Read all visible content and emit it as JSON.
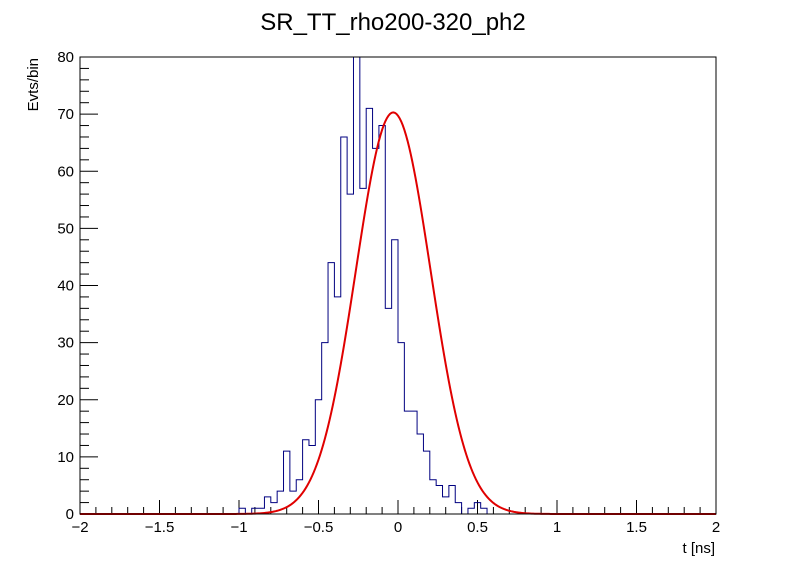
{
  "chart_data": {
    "type": "histogram",
    "title": "SR_TT_rho200-320_ph2",
    "xlabel": "t [ns]",
    "ylabel": "Evts/bin",
    "xlim": [
      -2,
      2
    ],
    "ylim": [
      0,
      80
    ],
    "grid": false,
    "legend": "none",
    "x_ticks": [
      -2,
      -1.5,
      -1,
      -0.5,
      0,
      0.5,
      1,
      1.5,
      2
    ],
    "x_tick_labels": [
      "−2",
      "−1.5",
      "−1",
      "−0.5",
      "0",
      "0.5",
      "1",
      "1.5",
      "2"
    ],
    "y_ticks": [
      0,
      10,
      20,
      30,
      40,
      50,
      60,
      70,
      80
    ],
    "y_tick_labels": [
      "0",
      "10",
      "20",
      "30",
      "40",
      "50",
      "60",
      "70",
      "80"
    ],
    "bin_width": 0.04,
    "histogram": {
      "color": "#000080",
      "bin_edges_start": -2.0,
      "counts": [
        0,
        0,
        0,
        0,
        0,
        0,
        0,
        0,
        0,
        0,
        0,
        0,
        0,
        0,
        0,
        0,
        0,
        0,
        0,
        0,
        0,
        0,
        0,
        0,
        0,
        1,
        0,
        1,
        1,
        3,
        2,
        4,
        11,
        4,
        6,
        13,
        12,
        20,
        30,
        44,
        38,
        66,
        56,
        80,
        57,
        71,
        64,
        68,
        36,
        48,
        30,
        18,
        18,
        14,
        11,
        6,
        5,
        3,
        5,
        2,
        0,
        1,
        2,
        1,
        0,
        0,
        0,
        0,
        0,
        0,
        0,
        0,
        0,
        0,
        0,
        0,
        0,
        0,
        0,
        0,
        0,
        0,
        0,
        0,
        0,
        0,
        0,
        0,
        0,
        0,
        0,
        0,
        0,
        0,
        0,
        0,
        0,
        0,
        0,
        0
      ]
    },
    "fit": {
      "type": "gaussian",
      "color": "#e00000",
      "amplitude": 70.3,
      "mean": -0.03,
      "sigma": 0.235
    }
  }
}
